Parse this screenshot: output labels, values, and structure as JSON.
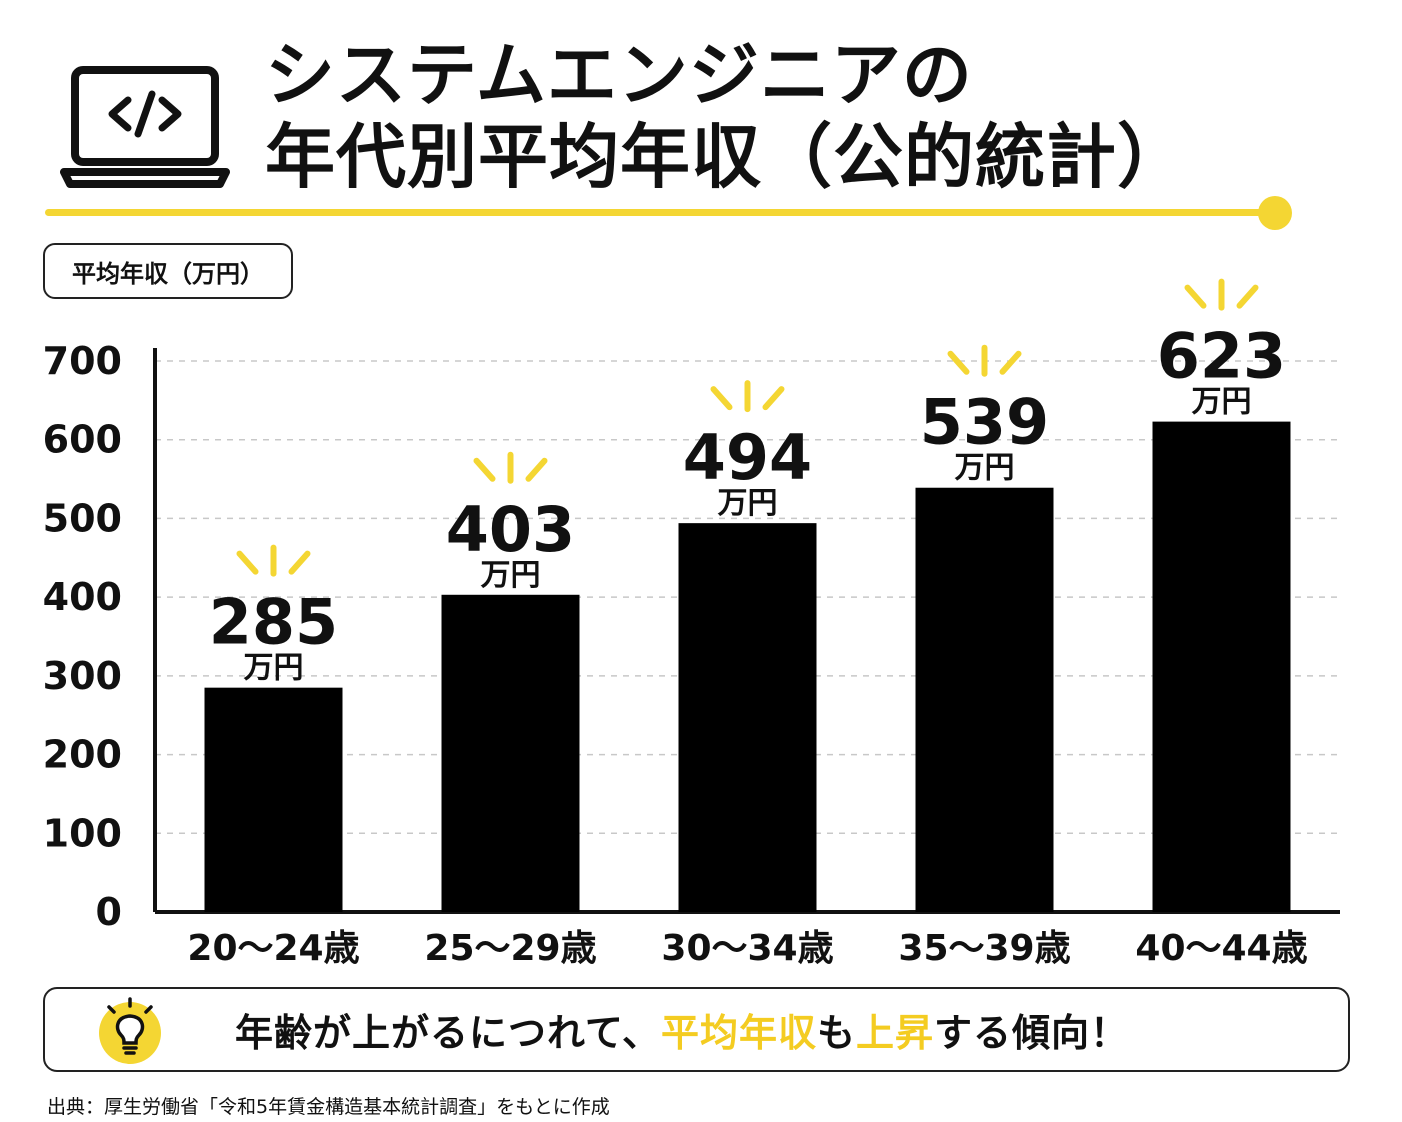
{
  "title": {
    "line1": "システムエンジニアの",
    "line2": "年代別平均年収（公的統計）"
  },
  "header_icon": "laptop-code-icon",
  "colors": {
    "accent": "#f4d633",
    "bar": "#000000",
    "highlight": "#f4cc21"
  },
  "chart_data": {
    "type": "bar",
    "unit_label": "平均年収（万円）",
    "categories": [
      "20～24歳",
      "25～29歳",
      "30～34歳",
      "35～39歳",
      "40～44歳"
    ],
    "values": [
      285,
      403,
      494,
      539,
      623
    ],
    "value_suffix": "万円",
    "y_ticks": [
      "700",
      "600",
      "500",
      "400",
      "300",
      "200",
      "100",
      "0"
    ],
    "ylim": [
      0,
      700
    ],
    "grid": true,
    "grid_style": "dashed",
    "value_label_decoration": "yellow-burst"
  },
  "note": {
    "icon": "lightbulb-icon",
    "text_before": "年齢が上がるにつれて、",
    "highlight_1": "平均年収",
    "middle": "も",
    "highlight_2": "上昇",
    "text_after": "する傾向！"
  },
  "source": "出典：厚生労働省「令和5年賃金構造基本統計調査」をもとに作成"
}
